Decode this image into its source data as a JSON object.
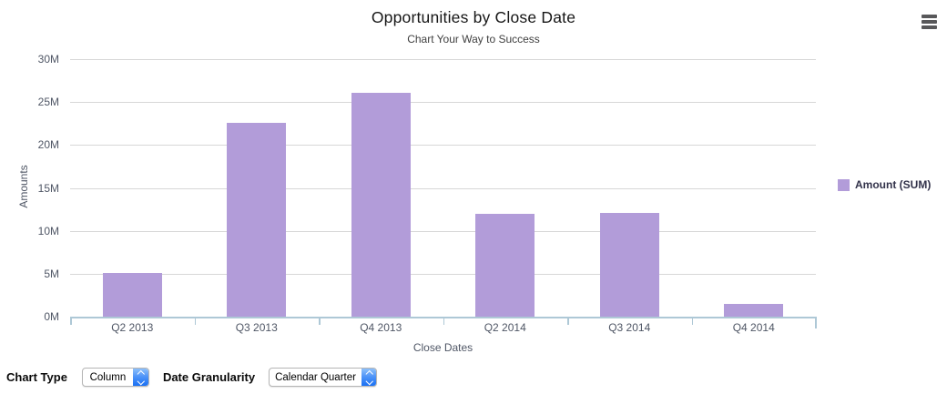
{
  "header": {
    "title": "Opportunities by Close Date",
    "subtitle": "Chart Your Way to Success"
  },
  "menu": {
    "icon": "hamburger-menu-icon"
  },
  "chart_data": {
    "type": "bar",
    "title": "Opportunities by Close Date",
    "subtitle": "Chart Your Way to Success",
    "categories": [
      "Q2 2013",
      "Q3 2013",
      "Q4 2013",
      "Q2 2014",
      "Q3 2014",
      "Q4 2014"
    ],
    "series": [
      {
        "name": "Amount (SUM)",
        "values": [
          5.1,
          22.6,
          26.1,
          12.0,
          12.1,
          1.5
        ]
      }
    ],
    "values_unit": "millions",
    "xlabel": "Close Dates",
    "ylabel": "Amounts",
    "ylim": [
      0,
      30
    ],
    "ytick_step": 5,
    "ytick_labels": [
      "0M",
      "5M",
      "10M",
      "15M",
      "20M",
      "25M",
      "30M"
    ],
    "grid": true,
    "legend_position": "right",
    "bar_color": "#b29cd9"
  },
  "legend": {
    "items": [
      {
        "label": "Amount (SUM)",
        "color": "#b29cd9"
      }
    ]
  },
  "controls": {
    "chart_type": {
      "label": "Chart Type",
      "value": "Column"
    },
    "date_granularity": {
      "label": "Date Granularity",
      "value": "Calendar Quarter"
    }
  },
  "colors": {
    "bar": "#b29cd9",
    "gridline": "#d7d7d7",
    "axis_line": "#aec8d6",
    "tick_label": "#4f5665",
    "title": "#161616",
    "legend_text": "#32324a",
    "stepper_blue": "#1a70f4",
    "menu_icon": "#58585a"
  }
}
